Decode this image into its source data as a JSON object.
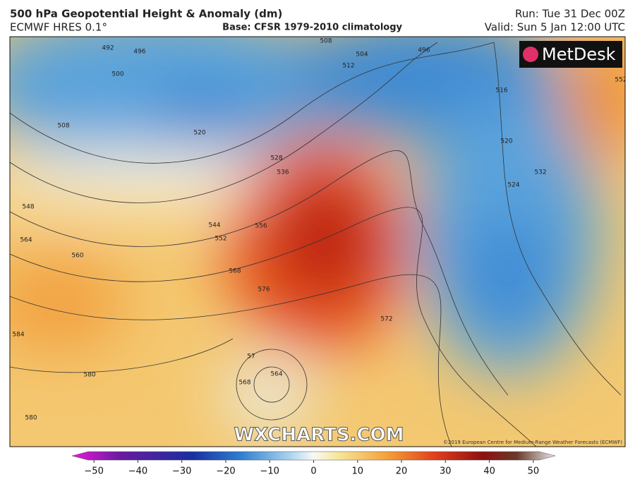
{
  "header": {
    "title": "500 hPa Geopotential Height & Anomaly (dm)",
    "model": "ECMWF HRES 0.1°",
    "base": "Base: CFSR 1979-2010 climatology",
    "run": "Run: Tue 31 Dec 00Z",
    "valid": "Valid: Sun 5 Jan 12:00 UTC"
  },
  "map": {
    "logo": "MetDesk",
    "watermark": "WXCHARTS.COM",
    "copyright": "©2019 European Centre for Medium-Range Weather Forecasts (ECMWF)",
    "contour_labels": [
      "492",
      "496",
      "500",
      "508",
      "520",
      "528",
      "536",
      "544",
      "548",
      "552",
      "556",
      "560",
      "564",
      "568",
      "576",
      "572",
      "584",
      "580",
      "580",
      "57",
      "564",
      "568",
      "508",
      "504",
      "512",
      "496",
      "516",
      "520",
      "524",
      "532",
      "552"
    ]
  },
  "colorbar": {
    "range": [
      -55,
      55
    ],
    "ticks": [
      {
        "value": -50,
        "label": "−50"
      },
      {
        "value": -40,
        "label": "−40"
      },
      {
        "value": -30,
        "label": "−30"
      },
      {
        "value": -20,
        "label": "−20"
      },
      {
        "value": -10,
        "label": "−10"
      },
      0,
      10,
      20,
      30,
      40,
      50
    ]
  }
}
